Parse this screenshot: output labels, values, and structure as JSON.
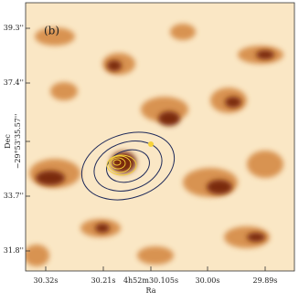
{
  "panel_label": "(b)",
  "x_axis": {
    "label": "Ra",
    "ticks": [
      "30.32s",
      "30.21s",
      "4h52m30.105s",
      "30.00s",
      "29.89s"
    ]
  },
  "y_axis": {
    "label": "Dec",
    "ticks": [
      "39.3''",
      "37.4''",
      "−29°53'35.57''",
      "33.7''",
      "31.8''"
    ]
  }
}
